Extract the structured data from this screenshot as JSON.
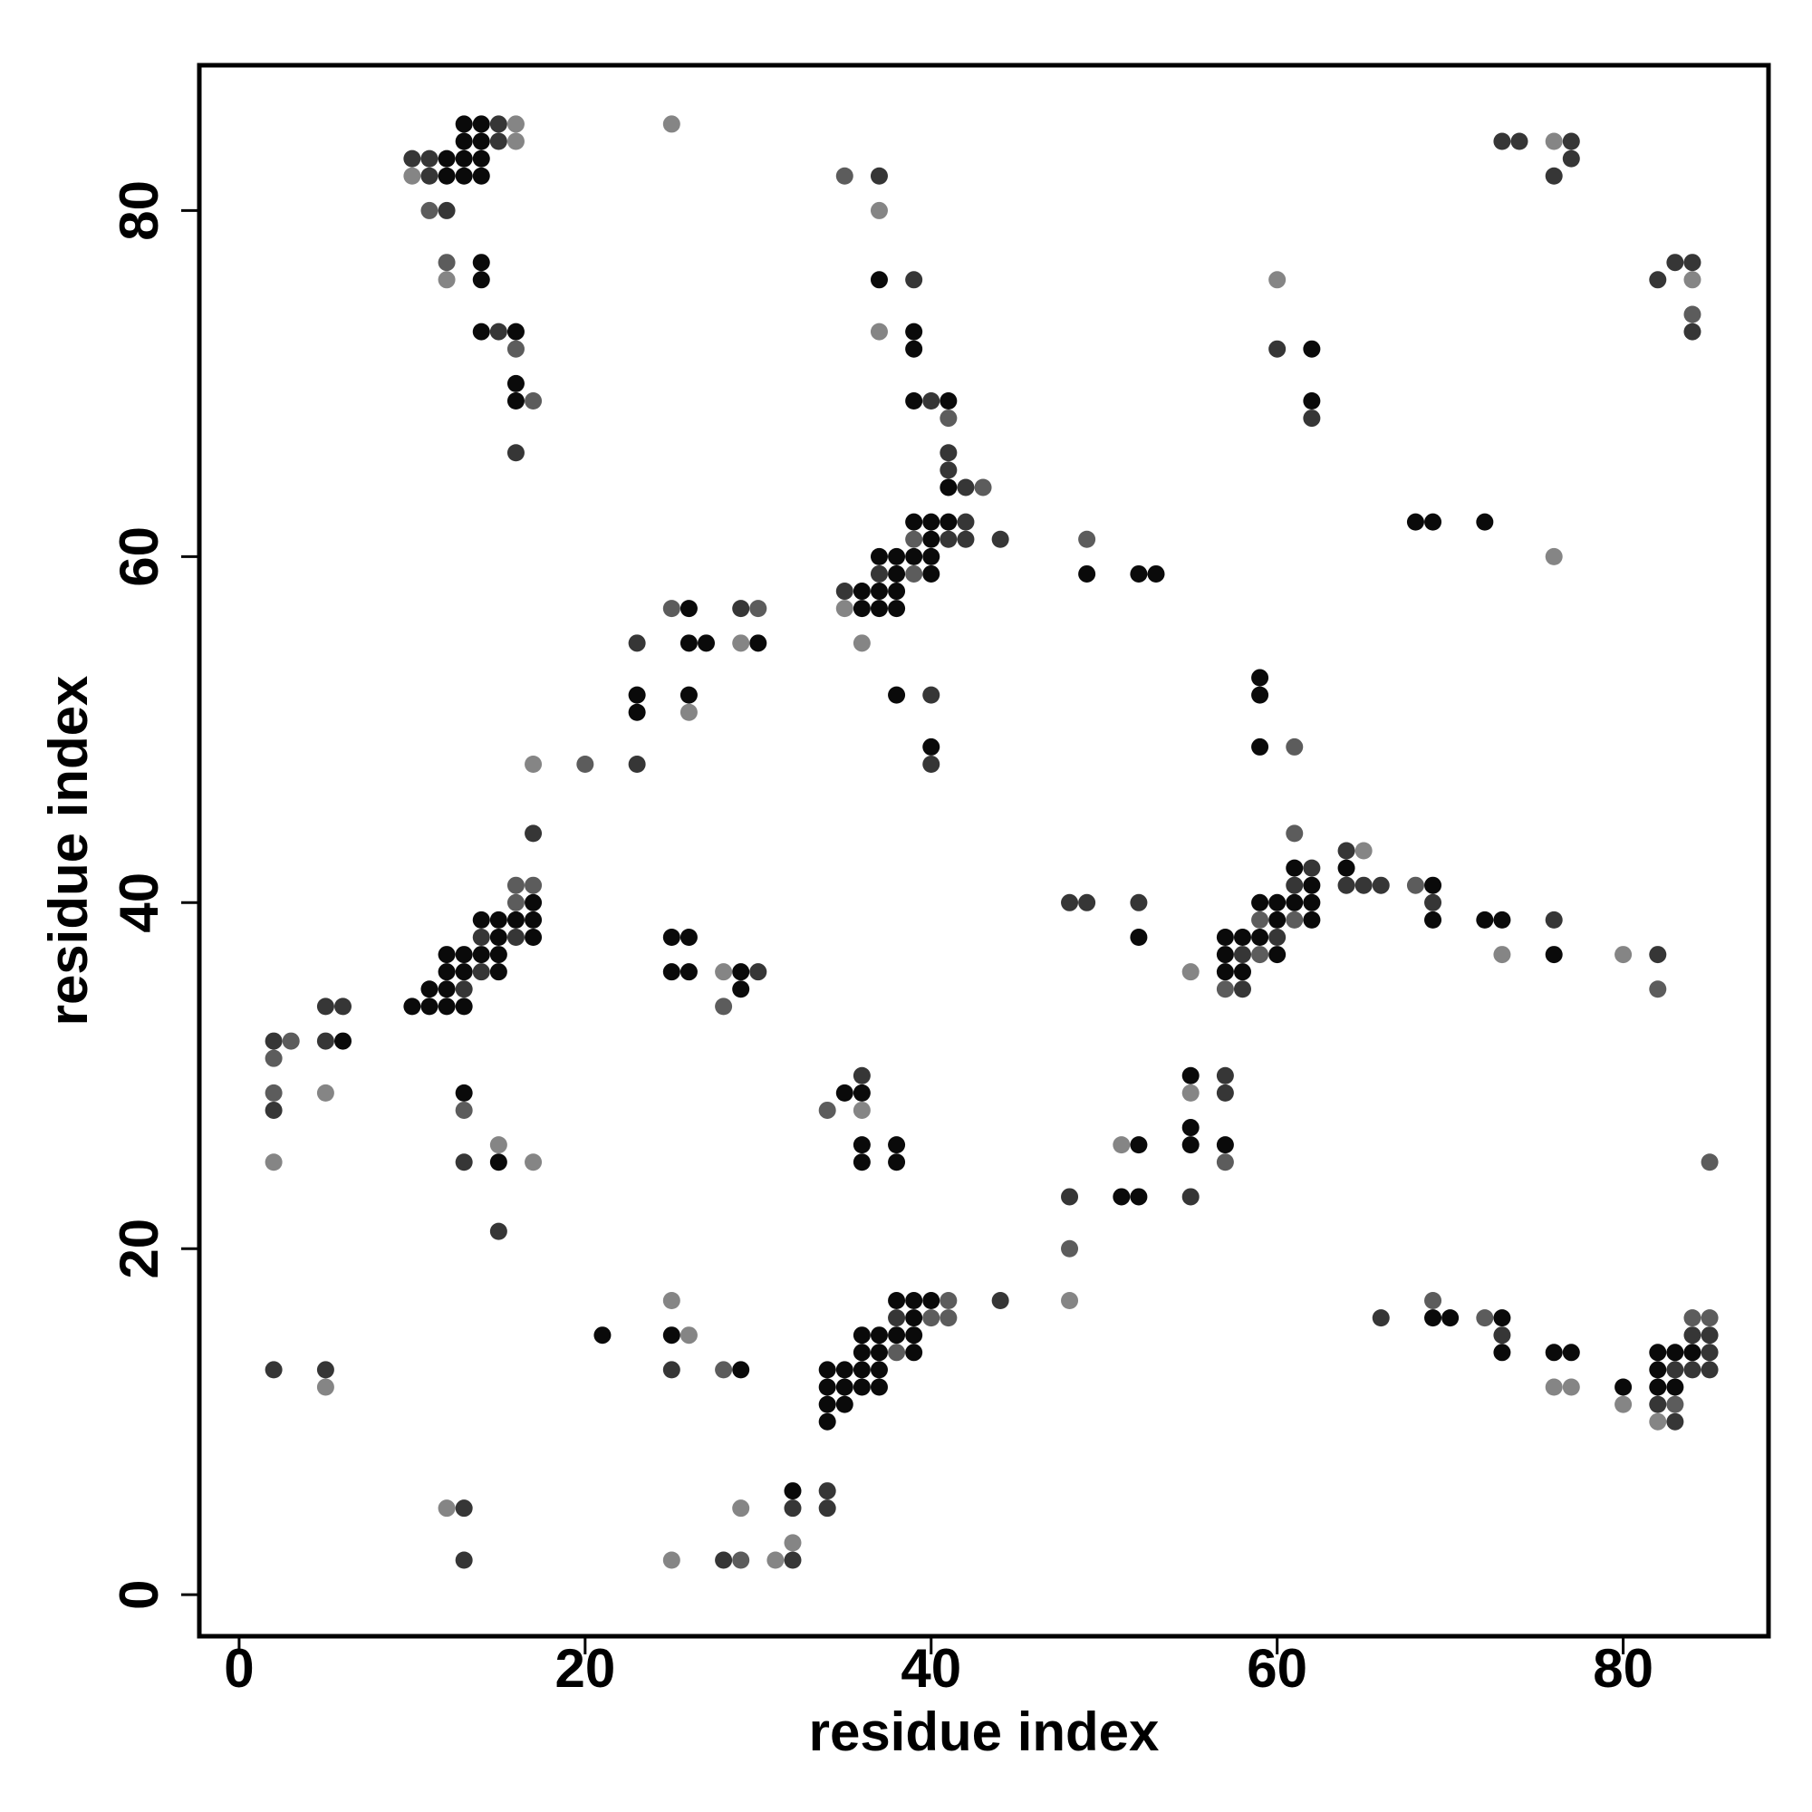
{
  "chart_data": {
    "type": "scatter",
    "xlabel": "residue index",
    "ylabel": "residue index",
    "xlim": [
      -2.3,
      88.4
    ],
    "ylim": [
      -2.4,
      88.4
    ],
    "xticks": [
      0,
      20,
      40,
      60,
      80
    ],
    "yticks": [
      0,
      20,
      40,
      60,
      80
    ],
    "grid": false,
    "series": [
      {
        "color": "#0a0a0a",
        "x": [
          13,
          14,
          13,
          14,
          12,
          13,
          14,
          12,
          13,
          14,
          14,
          14,
          37,
          14,
          16,
          39,
          39,
          62,
          16,
          16,
          39,
          41,
          62,
          41,
          39,
          40,
          41,
          68,
          69,
          72,
          40,
          37,
          38,
          39,
          40,
          38,
          40,
          49,
          52,
          53,
          36,
          37,
          38,
          26,
          36,
          37,
          38,
          26,
          27,
          30,
          59,
          23,
          26,
          38,
          59,
          23,
          40,
          59,
          61,
          64,
          62,
          69,
          17,
          59,
          60,
          61,
          62,
          14,
          15,
          16,
          17,
          60,
          62,
          69,
          72,
          73,
          15,
          17,
          25,
          26,
          52,
          57,
          58,
          59,
          12,
          13,
          14,
          15,
          57,
          60,
          76,
          12,
          13,
          15,
          25,
          26,
          29,
          57,
          58,
          11,
          12,
          29,
          10,
          11,
          12,
          13,
          6,
          55,
          13,
          35,
          36,
          55,
          36,
          38,
          52,
          55,
          57,
          15,
          36,
          38,
          51,
          52,
          38,
          39,
          40,
          39,
          69,
          70,
          73,
          21,
          25,
          36,
          37,
          38,
          39,
          36,
          37,
          39,
          73,
          76,
          77,
          82,
          83,
          84,
          29,
          34,
          35,
          36,
          37,
          82,
          34,
          35,
          36,
          37,
          80,
          82,
          83,
          34,
          35,
          34,
          32
        ],
        "y": [
          85,
          85,
          84,
          84,
          83,
          83,
          83,
          82,
          82,
          82,
          77,
          76,
          76,
          73,
          73,
          73,
          72,
          72,
          70,
          69,
          69,
          69,
          69,
          64,
          62,
          62,
          62,
          62,
          62,
          62,
          61,
          60,
          60,
          60,
          60,
          59,
          59,
          59,
          59,
          59,
          58,
          58,
          58,
          57,
          57,
          57,
          57,
          55,
          55,
          55,
          53,
          52,
          52,
          52,
          52,
          51,
          49,
          49,
          42,
          42,
          41,
          41,
          40,
          40,
          40,
          40,
          40,
          39,
          39,
          39,
          39,
          39,
          39,
          39,
          39,
          39,
          38,
          38,
          38,
          38,
          38,
          38,
          38,
          38,
          37,
          37,
          37,
          37,
          37,
          37,
          37,
          36,
          36,
          36,
          36,
          36,
          36,
          36,
          36,
          35,
          35,
          35,
          34,
          34,
          34,
          34,
          32,
          30,
          29,
          29,
          29,
          27,
          26,
          26,
          26,
          26,
          26,
          25,
          25,
          25,
          23,
          23,
          17,
          17,
          17,
          16,
          16,
          16,
          16,
          15,
          15,
          15,
          15,
          15,
          15,
          14,
          14,
          14,
          14,
          14,
          14,
          14,
          14,
          14,
          13,
          13,
          13,
          13,
          13,
          13,
          12,
          12,
          12,
          12,
          12,
          12,
          12,
          11,
          11,
          10,
          6
        ]
      },
      {
        "color": "#363636",
        "x": [
          15,
          15,
          73,
          74,
          77,
          10,
          11,
          77,
          11,
          37,
          76,
          12,
          83,
          84,
          39,
          82,
          15,
          84,
          60,
          40,
          62,
          16,
          41,
          41,
          42,
          42,
          41,
          42,
          44,
          37,
          35,
          29,
          23,
          40,
          23,
          40,
          17,
          64,
          62,
          61,
          64,
          65,
          66,
          48,
          49,
          52,
          69,
          76,
          14,
          16,
          60,
          58,
          82,
          14,
          30,
          13,
          58,
          5,
          6,
          2,
          5,
          36,
          57,
          57,
          2,
          13,
          48,
          55,
          15,
          44,
          38,
          66,
          73,
          84,
          85,
          85,
          2,
          5,
          25,
          83,
          84,
          85,
          82,
          83,
          34,
          13,
          32,
          34,
          13,
          28,
          32
        ],
        "y": [
          85,
          84,
          84,
          84,
          84,
          83,
          83,
          83,
          82,
          82,
          82,
          80,
          77,
          77,
          76,
          76,
          73,
          73,
          72,
          69,
          68,
          66,
          66,
          65,
          64,
          62,
          61,
          61,
          61,
          59,
          58,
          57,
          55,
          52,
          48,
          48,
          44,
          43,
          42,
          41,
          41,
          41,
          41,
          40,
          40,
          40,
          40,
          39,
          38,
          38,
          38,
          37,
          37,
          36,
          36,
          35,
          35,
          34,
          34,
          32,
          32,
          30,
          30,
          29,
          28,
          25,
          23,
          23,
          21,
          17,
          16,
          16,
          15,
          15,
          15,
          14,
          13,
          13,
          13,
          13,
          13,
          13,
          11,
          10,
          6,
          5,
          5,
          5,
          2,
          2,
          2
        ]
      },
      {
        "color": "#5c5c5c",
        "x": [
          35,
          11,
          12,
          84,
          16,
          17,
          41,
          43,
          39,
          49,
          39,
          25,
          30,
          20,
          61,
          61,
          16,
          17,
          68,
          16,
          59,
          61,
          59,
          57,
          82,
          28,
          3,
          2,
          2,
          13,
          34,
          57,
          85,
          48,
          41,
          69,
          40,
          41,
          72,
          84,
          85,
          38,
          28,
          83,
          29
        ],
        "y": [
          82,
          80,
          77,
          74,
          72,
          69,
          68,
          64,
          61,
          61,
          59,
          57,
          57,
          48,
          49,
          44,
          41,
          41,
          41,
          40,
          39,
          39,
          37,
          35,
          35,
          34,
          32,
          31,
          29,
          28,
          28,
          25,
          25,
          20,
          17,
          17,
          16,
          16,
          16,
          16,
          16,
          14,
          13,
          11,
          2
        ]
      },
      {
        "color": "#858585",
        "x": [
          16,
          25,
          16,
          76,
          10,
          37,
          12,
          60,
          84,
          37,
          76,
          35,
          29,
          36,
          26,
          17,
          65,
          73,
          80,
          28,
          55,
          5,
          55,
          36,
          15,
          51,
          2,
          17,
          25,
          48,
          26,
          5,
          76,
          77,
          80,
          82,
          12,
          29,
          32,
          25,
          31
        ],
        "y": [
          85,
          85,
          84,
          84,
          82,
          80,
          76,
          76,
          76,
          73,
          60,
          57,
          55,
          55,
          51,
          48,
          43,
          37,
          37,
          36,
          36,
          29,
          29,
          28,
          26,
          26,
          25,
          25,
          17,
          17,
          15,
          12,
          12,
          12,
          11,
          10,
          5,
          5,
          3,
          2,
          2
        ]
      }
    ]
  }
}
